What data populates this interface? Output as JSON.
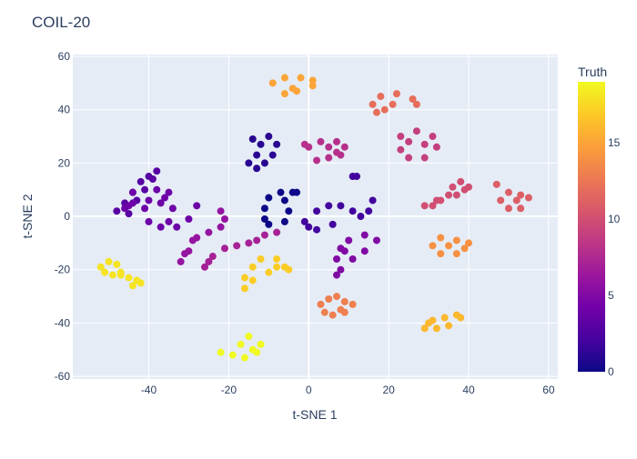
{
  "chart_data": {
    "type": "scatter",
    "title": "COIL-20",
    "x_label": "t-SNE 1",
    "y_label": "t-SNE 2",
    "xlim": [
      -59,
      62.3
    ],
    "ylim": [
      -61,
      60.7
    ],
    "xticks": [
      -40,
      -20,
      0,
      20,
      40,
      60
    ],
    "yticks": [
      -60,
      -40,
      -20,
      0,
      20,
      40,
      60
    ],
    "grid": true,
    "colorbar": {
      "title": "Truth",
      "lim": [
        0,
        19
      ],
      "ticks": [
        0,
        5,
        10,
        15
      ],
      "colorscale": [
        "#0d0887",
        "#46039f",
        "#7201a8",
        "#9c179e",
        "#bd3786",
        "#d8576b",
        "#ed7953",
        "#fb9f3a",
        "#fdca26",
        "#f0f921"
      ]
    },
    "series": [
      {
        "color_value": 0,
        "x": [
          -3,
          -7,
          -10,
          -11,
          -11,
          -10,
          -6,
          -5,
          -6,
          -4
        ],
        "values": [
          9,
          9,
          7,
          3,
          -1,
          -3,
          -2,
          2,
          6,
          9
        ]
      },
      {
        "color_value": 1,
        "x": [
          -14,
          -10,
          -8,
          -9,
          -11,
          -13,
          -15,
          -13,
          -12
        ],
        "values": [
          29,
          30,
          27,
          23,
          20,
          18,
          20,
          23,
          27
        ]
      },
      {
        "color_value": 2,
        "x": [
          0,
          -1,
          2,
          5,
          8,
          11,
          13,
          15,
          16,
          2,
          6,
          11,
          12
        ],
        "values": [
          -4,
          -2,
          2,
          4,
          4,
          2,
          0,
          2,
          6,
          -5,
          -3,
          15,
          15
        ]
      },
      {
        "color_value": 3,
        "x": [
          -48,
          -46,
          -44,
          -42,
          -40,
          -38,
          -45,
          -43,
          -41,
          -39
        ],
        "values": [
          2,
          5,
          9,
          13,
          15,
          17,
          1,
          6,
          10,
          14
        ]
      },
      {
        "color_value": 4,
        "x": [
          -44,
          -40,
          -37,
          -34,
          -36,
          -41,
          -44,
          -38,
          -35,
          -40,
          -37,
          -33,
          -30,
          -28,
          -35,
          -45,
          -46
        ],
        "values": [
          5,
          6,
          5,
          3,
          7,
          3,
          9,
          10,
          9,
          -2,
          -4,
          -4,
          -1,
          4,
          -2,
          4,
          3
        ]
      },
      {
        "color_value": 5,
        "x": [
          8,
          10,
          14,
          17,
          14,
          11,
          7,
          9,
          8,
          7
        ],
        "values": [
          -12,
          -9,
          -7,
          -9,
          -13,
          -16,
          -16,
          -13,
          -20,
          -22
        ]
      },
      {
        "color_value": 6,
        "x": [
          -32,
          -30,
          -28,
          -25,
          -22,
          -21,
          -22,
          -31,
          -29
        ],
        "values": [
          -17,
          -13,
          -8,
          -6,
          -4,
          -1,
          2,
          -14,
          -9
        ]
      },
      {
        "color_value": 7,
        "x": [
          -26,
          -24,
          -21,
          -18,
          -15,
          -13,
          -11,
          -25,
          -8
        ],
        "values": [
          -19,
          -15,
          -12,
          -11,
          -10,
          -9,
          -7,
          -17,
          -6
        ]
      },
      {
        "color_value": 8,
        "x": [
          -1,
          3,
          7,
          9,
          7,
          5,
          2,
          0,
          5,
          8
        ],
        "values": [
          27,
          28,
          28,
          26,
          24,
          22,
          21,
          26,
          26,
          23
        ]
      },
      {
        "color_value": 9,
        "x": [
          23,
          27,
          31,
          32,
          29,
          25,
          23,
          25,
          29
        ],
        "values": [
          30,
          32,
          30,
          26,
          22,
          22,
          25,
          28,
          27
        ]
      },
      {
        "color_value": 10,
        "x": [
          29,
          32,
          35,
          36,
          38,
          40,
          37,
          33,
          31,
          39
        ],
        "values": [
          4,
          6,
          8,
          11,
          13,
          11,
          8,
          6,
          4,
          10
        ]
      },
      {
        "color_value": 11,
        "x": [
          47,
          50,
          53,
          55,
          53,
          50,
          48,
          52
        ],
        "values": [
          12,
          9,
          8,
          7,
          3,
          3,
          6,
          6
        ]
      },
      {
        "color_value": 12,
        "x": [
          16,
          18,
          22,
          26,
          27,
          19,
          17,
          21
        ],
        "values": [
          42,
          45,
          46,
          44,
          42,
          40,
          39,
          42
        ]
      },
      {
        "color_value": 13,
        "x": [
          3,
          5,
          9,
          11,
          9,
          6,
          4,
          8,
          7
        ],
        "values": [
          -33,
          -31,
          -32,
          -33,
          -36,
          -37,
          -36,
          -35,
          -30
        ]
      },
      {
        "color_value": 14,
        "x": [
          31,
          33,
          37,
          39,
          37,
          33,
          35,
          40
        ],
        "values": [
          -11,
          -8,
          -9,
          -12,
          -14,
          -14,
          -11,
          -10
        ]
      },
      {
        "color_value": 15,
        "x": [
          -9,
          -6,
          -2,
          1,
          1,
          -3,
          -6,
          -4
        ],
        "values": [
          50,
          52,
          52,
          51,
          49,
          47,
          46,
          48
        ]
      },
      {
        "color_value": 16,
        "x": [
          29,
          31,
          34,
          37,
          38,
          35,
          32,
          30
        ],
        "values": [
          -42,
          -39,
          -38,
          -37,
          -38,
          -41,
          -42,
          -40
        ]
      },
      {
        "color_value": 17,
        "x": [
          -16,
          -16,
          -14,
          -12,
          -8,
          -6,
          -5,
          -10,
          -14,
          -8
        ],
        "values": [
          -27,
          -23,
          -19,
          -16,
          -16,
          -19,
          -20,
          -21,
          -24,
          -19
        ]
      },
      {
        "color_value": 18,
        "x": [
          -52,
          -50,
          -48,
          -47,
          -45,
          -43,
          -42,
          -44,
          -47,
          -51,
          -49
        ],
        "values": [
          -19,
          -17,
          -18,
          -21,
          -23,
          -24,
          -25,
          -26,
          -22,
          -21,
          -22
        ]
      },
      {
        "color_value": 19,
        "x": [
          -22,
          -19,
          -16,
          -13,
          -12,
          -15,
          -17,
          -14
        ],
        "values": [
          -51,
          -52,
          -53,
          -51,
          -48,
          -45,
          -48,
          -50
        ]
      }
    ]
  }
}
